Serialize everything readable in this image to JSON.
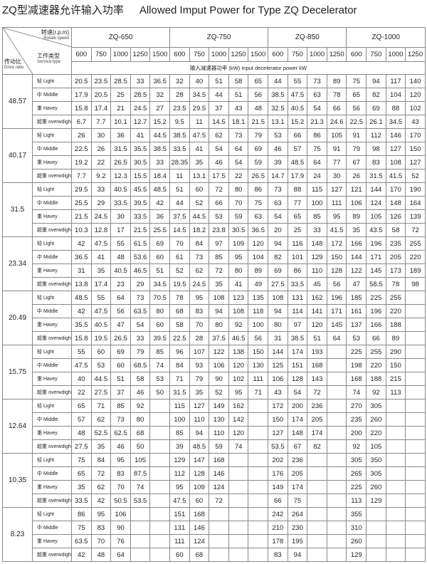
{
  "title": {
    "cn": "ZQ型减速器允许输入功率",
    "en": "Allowed Imput Power for Type ZQ Decelerator"
  },
  "header": {
    "speed_cn": "转速(r.p.m)",
    "speed_en": "Rotate speed",
    "type_cn": "工作类型",
    "type_en": "Serviva type",
    "ratio_cn": "传动比",
    "ratio_en": "Drive ratio",
    "power_label": "输入减速器功率 (kW)  Input decelerator power kW",
    "models": [
      {
        "name": "ZQ-650",
        "speeds": [
          "600",
          "750",
          "1000",
          "1250",
          "1500"
        ]
      },
      {
        "name": "ZQ-750",
        "speeds": [
          "600",
          "750",
          "1000",
          "1250",
          "1500"
        ]
      },
      {
        "name": "ZQ-850",
        "speeds": [
          "600",
          "750",
          "1000",
          "1250"
        ]
      },
      {
        "name": "ZQ-1000",
        "speeds": [
          "600",
          "750",
          "1000",
          "1250"
        ]
      }
    ]
  },
  "service_types": [
    "轻 Light",
    "中 Middle",
    "重 Havey",
    "超重 overwdight"
  ],
  "blocks": [
    {
      "ratio": "48.57",
      "rows": [
        [
          "20.5",
          "23.5",
          "28.5",
          "33",
          "36.5",
          "32",
          "40",
          "51",
          "58",
          "65",
          "44",
          "55",
          "73",
          "89",
          "75",
          "94",
          "117",
          "140"
        ],
        [
          "17.9",
          "20.5",
          "25",
          "28.5",
          "32",
          "28",
          "34.5",
          "44",
          "51",
          "56",
          "38.5",
          "47.5",
          "63",
          "78",
          "65",
          "82",
          "104",
          "120"
        ],
        [
          "15.8",
          "17.4",
          "21",
          "24.5",
          "27",
          "23.5",
          "29.5",
          "37",
          "43",
          "48",
          "32.5",
          "40.5",
          "54",
          "66",
          "56",
          "69",
          "88",
          "102"
        ],
        [
          "6.7",
          "7.7",
          "10.1",
          "12.7",
          "15.2",
          "9.5",
          "11",
          "14.5",
          "18.1",
          "21.5",
          "13.1",
          "15.2",
          "21.3",
          "24.6",
          "22.5",
          "26.1",
          "34.5",
          "43"
        ]
      ]
    },
    {
      "ratio": "40.17",
      "rows": [
        [
          "26",
          "30",
          "36",
          "41",
          "44.5",
          "38.5",
          "47.5",
          "62",
          "73",
          "79",
          "53",
          "66",
          "86",
          "105",
          "91",
          "112",
          "146",
          "170"
        ],
        [
          "22.5",
          "26",
          "31.5",
          "35.5",
          "38.5",
          "33.5",
          "41",
          "54",
          "64",
          "69",
          "46",
          "57",
          "75",
          "91",
          "79",
          "98",
          "127",
          "150"
        ],
        [
          "19.2",
          "22",
          "26.5",
          "30.5",
          "33",
          "28.35",
          "35",
          "46",
          "54",
          "59",
          "39",
          "48.5",
          "64",
          "77",
          "67",
          "83",
          "108",
          "127"
        ],
        [
          "7.7",
          "9.2",
          "12.3",
          "15.5",
          "18.4",
          "11",
          "13.1",
          "17.5",
          "22",
          "26.5",
          "14.7",
          "17.9",
          "24",
          "30",
          "26",
          "31.5",
          "41.5",
          "52"
        ]
      ]
    },
    {
      "ratio": "31.5",
      "rows": [
        [
          "29.5",
          "33",
          "40.5",
          "45.5",
          "48.5",
          "51",
          "60",
          "72",
          "80",
          "86",
          "73",
          "88",
          "115",
          "127",
          "121",
          "144",
          "170",
          "190"
        ],
        [
          "25.5",
          "29",
          "33.5",
          "39.5",
          "42",
          "44",
          "52",
          "66",
          "70",
          "75",
          "63",
          "77",
          "100",
          "111",
          "106",
          "124",
          "148",
          "164"
        ],
        [
          "21.5",
          "24.5",
          "30",
          "33.5",
          "36",
          "37.5",
          "44.5",
          "53",
          "59",
          "63",
          "54",
          "65",
          "85",
          "95",
          "89",
          "105",
          "126",
          "139"
        ],
        [
          "10.3",
          "12.8",
          "17",
          "21.5",
          "25.5",
          "14.5",
          "18.2",
          "23.8",
          "30.5",
          "36.5",
          "20",
          "25",
          "33",
          "41.5",
          "35",
          "43.5",
          "58",
          "72"
        ]
      ]
    },
    {
      "ratio": "23.34",
      "rows": [
        [
          "42",
          "47.5",
          "55",
          "61.5",
          "69",
          "70",
          "84",
          "97",
          "109",
          "120",
          "94",
          "116",
          "148",
          "172",
          "166",
          "196",
          "235",
          "255"
        ],
        [
          "36.5",
          "41",
          "48",
          "53.6",
          "60",
          "61",
          "73",
          "85",
          "95",
          "104",
          "82",
          "101",
          "129",
          "150",
          "144",
          "171",
          "205",
          "220"
        ],
        [
          "31",
          "35",
          "40.5",
          "46.5",
          "51",
          "52",
          "62",
          "72",
          "80",
          "89",
          "69",
          "86",
          "110",
          "128",
          "122",
          "145",
          "173",
          "189"
        ],
        [
          "13.8",
          "17.4",
          "23",
          "29",
          "34.5",
          "19.5",
          "24.5",
          "35",
          "41",
          "49",
          "27.5",
          "33.5",
          "45",
          "56",
          "47",
          "58.5",
          "78",
          "98"
        ]
      ]
    },
    {
      "ratio": "20.49",
      "rows": [
        [
          "48.5",
          "55",
          "64",
          "73",
          "70.5",
          "78",
          "95",
          "108",
          "123",
          "135",
          "108",
          "131",
          "162",
          "196",
          "185",
          "225",
          "255",
          ""
        ],
        [
          "42",
          "47.5",
          "56",
          "63.5",
          "80",
          "68",
          "83",
          "94",
          "108",
          "118",
          "94",
          "114",
          "141",
          "171",
          "161",
          "196",
          "220",
          ""
        ],
        [
          "35.5",
          "40.5",
          "47",
          "54",
          "60",
          "58",
          "70",
          "80",
          "92",
          "100",
          "80",
          "97",
          "120",
          "145",
          "137",
          "166",
          "188",
          ""
        ],
        [
          "15.8",
          "19.5",
          "26.5",
          "33",
          "39.5",
          "22.5",
          "28",
          "37.5",
          "46.5",
          "56",
          "31",
          "38.5",
          "51",
          "64",
          "53",
          "66",
          "89",
          ""
        ]
      ]
    },
    {
      "ratio": "15.75",
      "rows": [
        [
          "55",
          "60",
          "69",
          "79",
          "85",
          "96",
          "107",
          "122",
          "138",
          "150",
          "144",
          "174",
          "193",
          "",
          "225",
          "255",
          "290",
          ""
        ],
        [
          "47.5",
          "53",
          "60",
          "68.5",
          "74",
          "84",
          "93",
          "106",
          "120",
          "130",
          "125",
          "151",
          "168",
          "",
          "198",
          "220",
          "150",
          ""
        ],
        [
          "40",
          "44.5",
          "51",
          "58",
          "53",
          "71",
          "79",
          "90",
          "102",
          "111",
          "106",
          "128",
          "143",
          "",
          "168",
          "188",
          "215",
          ""
        ],
        [
          "22",
          "27.5",
          "37",
          "46",
          "50",
          "31.5",
          "35",
          "52",
          "95",
          "71",
          "43",
          "54",
          "72",
          "",
          "74",
          "92",
          "113",
          ""
        ]
      ]
    },
    {
      "ratio": "12.64",
      "rows": [
        [
          "65",
          "71",
          "85",
          "92",
          "",
          "115",
          "127",
          "149",
          "162",
          "",
          "172",
          "200",
          "236",
          "",
          "270",
          "305",
          "",
          ""
        ],
        [
          "57",
          "62",
          "73",
          "80",
          "",
          "100",
          "110",
          "130",
          "142",
          "",
          "150",
          "174",
          "205",
          "",
          "235",
          "260",
          "",
          ""
        ],
        [
          "48",
          "52.5",
          "62.5",
          "68",
          "",
          "85",
          "94",
          "110",
          "120",
          "",
          "127",
          "148",
          "174",
          "",
          "200",
          "220",
          "",
          ""
        ],
        [
          "27.5",
          "35",
          "46",
          "50",
          "",
          "39",
          "48.5",
          "59",
          "74",
          "",
          "53.5",
          "67",
          "82",
          "",
          "92",
          "105",
          "",
          ""
        ]
      ]
    },
    {
      "ratio": "10.35",
      "rows": [
        [
          "75",
          "84",
          "95",
          "105",
          "",
          "129",
          "147",
          "168",
          "",
          "",
          "202",
          "236",
          "",
          "",
          "305",
          "350",
          "",
          ""
        ],
        [
          "65",
          "72",
          "83",
          "87.5",
          "",
          "112",
          "128",
          "146",
          "",
          "",
          "176",
          "205",
          "",
          "",
          "265",
          "305",
          "",
          ""
        ],
        [
          "35",
          "62",
          "70",
          "74",
          "",
          "95",
          "109",
          "124",
          "",
          "",
          "149",
          "174",
          "",
          "",
          "225",
          "260",
          "",
          ""
        ],
        [
          "33.5",
          "42",
          "50.5",
          "53.5",
          "",
          "47.5",
          "60",
          "72",
          "",
          "",
          "66",
          "75",
          "",
          "",
          "113",
          "129",
          "",
          ""
        ]
      ]
    },
    {
      "ratio": "8.23",
      "rows": [
        [
          "86",
          "95",
          "106",
          "",
          "",
          "151",
          "168",
          "",
          "",
          "",
          "242",
          "264",
          "",
          "",
          "355",
          "",
          "",
          ""
        ],
        [
          "75",
          "83",
          "90",
          "",
          "",
          "131",
          "146",
          "",
          "",
          "",
          "210",
          "230",
          "",
          "",
          "310",
          "",
          "",
          ""
        ],
        [
          "63.5",
          "70",
          "76",
          "",
          "",
          "111",
          "124",
          "",
          "",
          "",
          "178",
          "195",
          "",
          "",
          "260",
          "",
          "",
          ""
        ],
        [
          "42",
          "48",
          "64",
          "",
          "",
          "60",
          "68",
          "",
          "",
          "",
          "83",
          "94",
          "",
          "",
          "129",
          "",
          "",
          ""
        ]
      ]
    }
  ]
}
